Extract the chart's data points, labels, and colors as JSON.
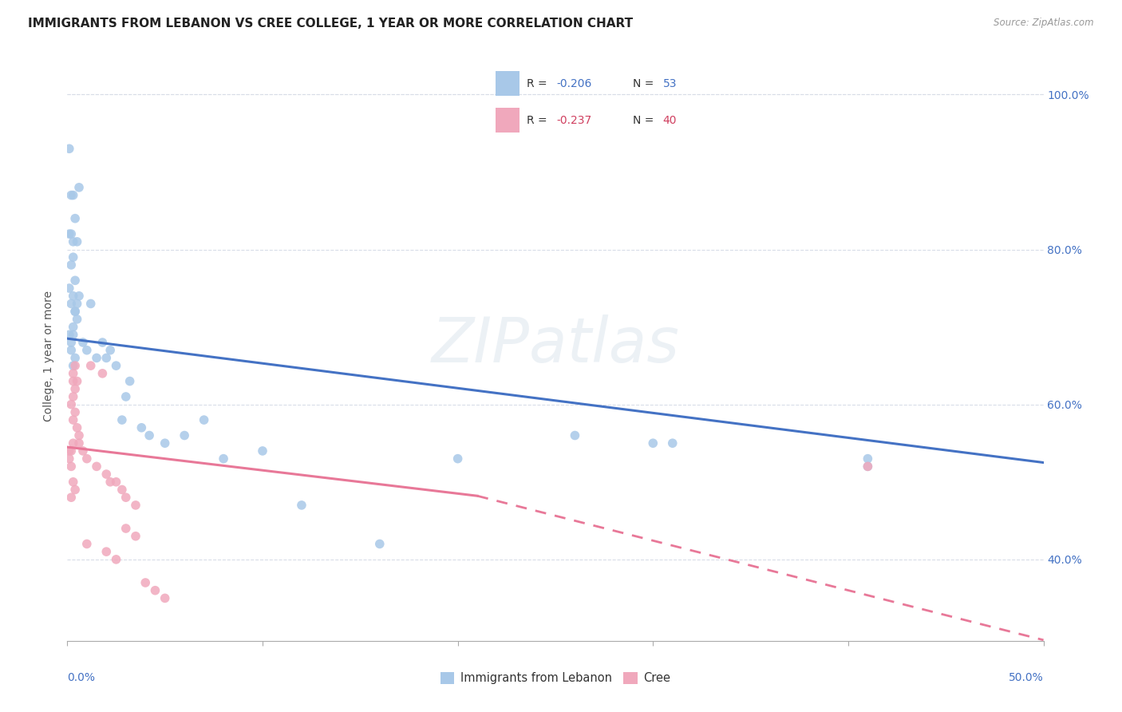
{
  "title": "IMMIGRANTS FROM LEBANON VS CREE COLLEGE, 1 YEAR OR MORE CORRELATION CHART",
  "source": "Source: ZipAtlas.com",
  "ylabel": "College, 1 year or more",
  "xlim": [
    0.0,
    0.5
  ],
  "ylim": [
    0.295,
    1.03
  ],
  "ytick_labels": [
    "40.0%",
    "60.0%",
    "80.0%",
    "100.0%"
  ],
  "ytick_values": [
    0.4,
    0.6,
    0.8,
    1.0
  ],
  "scatter_lebanon": {
    "color": "#a8c8e8",
    "x": [
      0.001,
      0.003,
      0.002,
      0.004,
      0.001,
      0.002,
      0.003,
      0.005,
      0.003,
      0.002,
      0.004,
      0.001,
      0.003,
      0.002,
      0.004,
      0.005,
      0.003,
      0.001,
      0.002,
      0.006,
      0.005,
      0.004,
      0.003,
      0.002,
      0.004,
      0.003,
      0.006,
      0.008,
      0.01,
      0.015,
      0.02,
      0.025,
      0.012,
      0.018,
      0.022,
      0.03,
      0.032,
      0.028,
      0.038,
      0.042,
      0.05,
      0.06,
      0.07,
      0.08,
      0.1,
      0.12,
      0.16,
      0.2,
      0.26,
      0.3,
      0.31,
      0.41,
      0.41
    ],
    "y": [
      0.93,
      0.87,
      0.87,
      0.84,
      0.82,
      0.82,
      0.81,
      0.81,
      0.79,
      0.78,
      0.76,
      0.75,
      0.74,
      0.73,
      0.72,
      0.71,
      0.7,
      0.69,
      0.68,
      0.88,
      0.73,
      0.72,
      0.69,
      0.67,
      0.66,
      0.65,
      0.74,
      0.68,
      0.67,
      0.66,
      0.66,
      0.65,
      0.73,
      0.68,
      0.67,
      0.61,
      0.63,
      0.58,
      0.57,
      0.56,
      0.55,
      0.56,
      0.58,
      0.53,
      0.54,
      0.47,
      0.42,
      0.53,
      0.56,
      0.55,
      0.55,
      0.52,
      0.53
    ]
  },
  "scatter_cree": {
    "color": "#f0a8bc",
    "x": [
      0.001,
      0.002,
      0.003,
      0.001,
      0.002,
      0.003,
      0.004,
      0.002,
      0.003,
      0.004,
      0.003,
      0.002,
      0.004,
      0.003,
      0.005,
      0.006,
      0.004,
      0.003,
      0.005,
      0.006,
      0.008,
      0.01,
      0.015,
      0.02,
      0.025,
      0.012,
      0.018,
      0.022,
      0.028,
      0.03,
      0.035,
      0.01,
      0.02,
      0.025,
      0.03,
      0.035,
      0.04,
      0.045,
      0.05,
      0.41
    ],
    "y": [
      0.54,
      0.54,
      0.55,
      0.53,
      0.52,
      0.5,
      0.49,
      0.48,
      0.63,
      0.62,
      0.61,
      0.6,
      0.59,
      0.58,
      0.57,
      0.56,
      0.65,
      0.64,
      0.63,
      0.55,
      0.54,
      0.53,
      0.52,
      0.51,
      0.5,
      0.65,
      0.64,
      0.5,
      0.49,
      0.48,
      0.47,
      0.42,
      0.41,
      0.4,
      0.44,
      0.43,
      0.37,
      0.36,
      0.35,
      0.52
    ]
  },
  "trendline_lebanon": {
    "color": "#4472c4",
    "x": [
      0.0,
      0.5
    ],
    "y": [
      0.685,
      0.525
    ],
    "linestyle": "solid",
    "linewidth": 2.2
  },
  "trendline_cree_solid": {
    "color": "#e87898",
    "x": [
      0.0,
      0.21
    ],
    "y": [
      0.545,
      0.482
    ],
    "linewidth": 2.2
  },
  "trendline_cree_dashed": {
    "color": "#e87898",
    "x": [
      0.21,
      0.5
    ],
    "y": [
      0.482,
      0.296
    ],
    "linewidth": 2.0
  },
  "legend_blue_label1": "R = −0.206",
  "legend_blue_n": "N = 53",
  "legend_pink_label1": "R = −0.237",
  "legend_pink_n": "N = 40",
  "legend_color_blue": "#a8c8e8",
  "legend_color_pink": "#f0a8bc",
  "legend_text_color": "#333333",
  "legend_num_color_blue": "#4472c4",
  "legend_num_color_pink": "#d04060",
  "watermark": "ZIPatlas",
  "background_color": "#ffffff",
  "grid_color": "#d8dde8",
  "title_fontsize": 11,
  "axis_fontsize": 10,
  "tick_fontsize": 10
}
